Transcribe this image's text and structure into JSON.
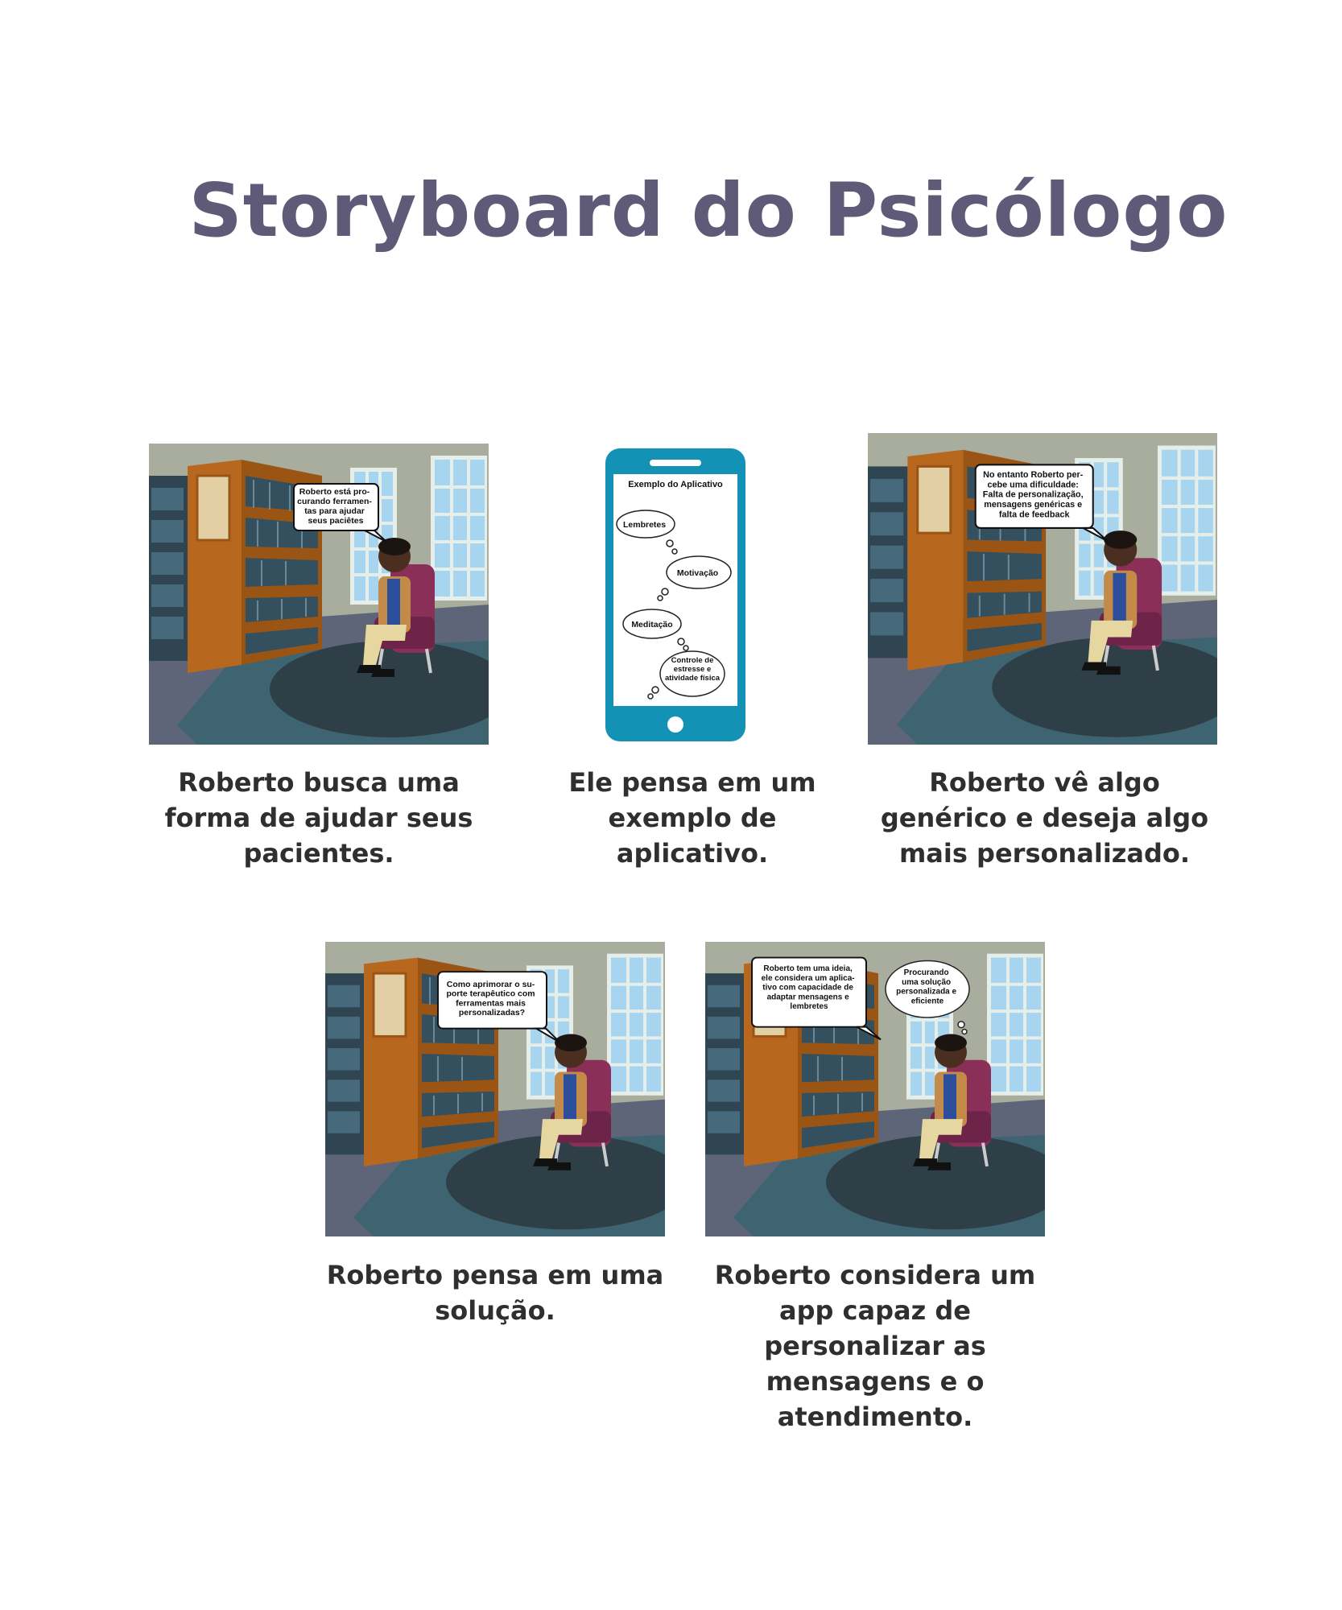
{
  "title": "Storyboard do Psicólogo",
  "panels": [
    {
      "speech": [
        "Roberto está pro-",
        "curando ferramen-",
        "tas para ajudar",
        "seus paciêtes"
      ],
      "caption": "Roberto busca uma forma de ajudar seus pacientes."
    },
    {
      "phone_title": "Exemplo do Aplicativo",
      "thoughts": [
        "Lembretes",
        "Motivação",
        "Meditação",
        "Controle de estresse e atividade física"
      ],
      "caption": "Ele pensa em um exemplo de aplicativo."
    },
    {
      "speech": [
        "No entanto Roberto per-",
        "cebe uma dificuldade:",
        "Falta de personalização,",
        "mensagens genéricas e",
        "falta de feedback"
      ],
      "caption": "Roberto vê algo genérico e deseja algo mais personalizado."
    },
    {
      "speech": [
        "Como aprimorar o su-",
        "porte terapêutico com",
        "ferramentas mais",
        "personalizadas?"
      ],
      "caption": "Roberto pensa em uma solução."
    },
    {
      "speech": [
        "Roberto tem uma ideia,",
        "ele considera um aplica-",
        "tivo com capacidade de",
        "adaptar mensagens e",
        "lembretes"
      ],
      "thought": [
        "Procurando",
        "uma solução",
        "personalizada e",
        "eficiente"
      ],
      "caption": "Roberto considera um app capaz de personalizar as mensagens e o atendimento."
    }
  ],
  "colors": {
    "title": "#5f5a78",
    "phone": "#1392b6",
    "wall": "#a9ad9e",
    "floor": "#5f6578",
    "shelf": "#b8681e"
  }
}
